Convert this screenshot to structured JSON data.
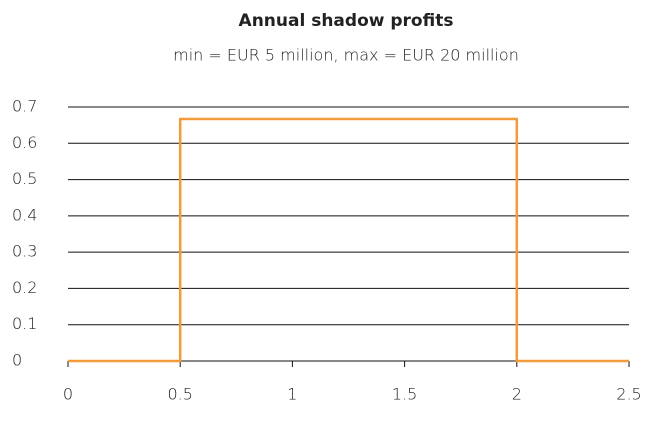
{
  "chart_data": {
    "type": "line",
    "title": "Annual shadow profits",
    "subtitle": "min = EUR 5 million, max = EUR 20 million",
    "x": [
      0,
      0.5,
      0.5,
      2,
      2,
      2.5
    ],
    "series": [
      {
        "color": "#f39a3b",
        "values": [
          0,
          0,
          0.667,
          0.667,
          0,
          0
        ]
      }
    ],
    "xlim": [
      0,
      2.5
    ],
    "xticks": [
      0,
      0.5,
      1,
      1.5,
      2,
      2.5
    ],
    "ylim": [
      0,
      0.7
    ],
    "yticks": [
      0,
      0.1,
      0.2,
      0.3,
      0.4,
      0.5,
      0.6,
      0.7
    ],
    "grid": true
  }
}
